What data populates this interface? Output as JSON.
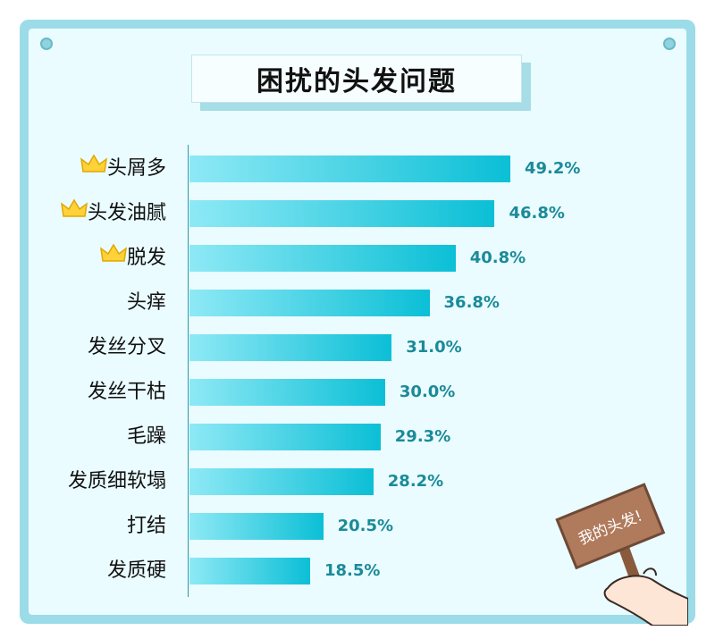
{
  "chart_data": {
    "type": "bar",
    "orientation": "horizontal",
    "title": "困扰的头发问题",
    "categories": [
      "头屑多",
      "头发油腻",
      "脱发",
      "头痒",
      "发丝分叉",
      "发丝干枯",
      "毛躁",
      "发质细软塌",
      "打结",
      "发质硬"
    ],
    "values": [
      49.2,
      46.8,
      40.8,
      36.8,
      31.0,
      30.0,
      29.3,
      28.2,
      20.5,
      18.5
    ],
    "value_labels": [
      "49.2%",
      "46.8%",
      "40.8%",
      "36.8%",
      "31.0%",
      "30.0%",
      "29.3%",
      "28.2%",
      "20.5%",
      "18.5%"
    ],
    "crowned": [
      true,
      true,
      true,
      false,
      false,
      false,
      false,
      false,
      false,
      false
    ],
    "xlim": [
      0,
      60
    ],
    "grid": false,
    "colors": {
      "bar_start": "#8ee9f5",
      "bar_end": "#0bbfd6",
      "value_text": "#1b8a99"
    }
  },
  "decoration": {
    "sign_text": "我的头发!",
    "crown_icon": "crown-icon"
  }
}
